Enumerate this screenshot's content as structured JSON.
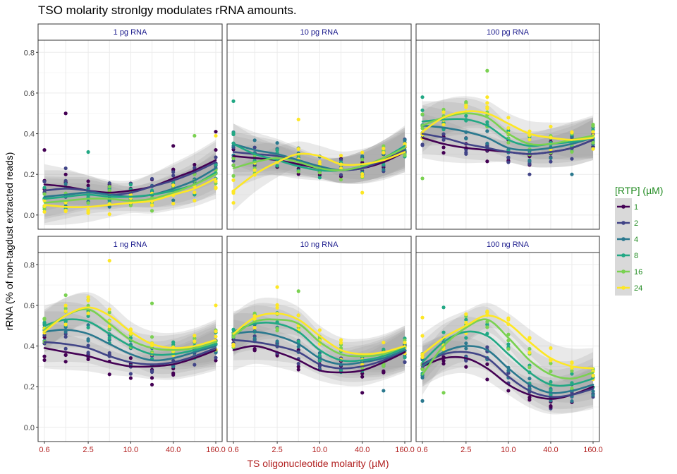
{
  "chart_data": {
    "type": "scatter",
    "title": "TSO molarity stronlgy modulates rRNA amounts.",
    "xlabel": "TS oligonucleotide molarity (µM)",
    "ylabel": "rRNA (% of non-tagdust extracted reads)",
    "x_scale": "log",
    "x_ticks": [
      0.6,
      2.5,
      10.0,
      40.0,
      160.0
    ],
    "x_tick_labels": [
      "0.6",
      "2.5",
      "10.0",
      "40.0",
      "160.0"
    ],
    "x_levels": [
      0.6,
      1.2,
      2.5,
      5,
      10,
      20,
      40,
      80,
      160
    ],
    "ylim": [
      -0.07,
      0.86
    ],
    "y_ticks": [
      0.0,
      0.2,
      0.4,
      0.6,
      0.8
    ],
    "y_tick_labels": [
      "0.0",
      "0.2",
      "0.4",
      "0.6",
      "0.8"
    ],
    "grid": true,
    "legend": {
      "title": "[RTP] (µM)",
      "position": "right",
      "entries": [
        "1",
        "2",
        "4",
        "8",
        "16",
        "24"
      ]
    },
    "colors": {
      "1": "#440154",
      "2": "#414487",
      "4": "#2a788e",
      "8": "#22a884",
      "16": "#7ad151",
      "24": "#fde725",
      "panel_border": "#333333",
      "strip_bg": "#ffffff",
      "ribbon": "#999999"
    },
    "panels": [
      {
        "label": "1 pg RNA",
        "series": [
          {
            "rtp": "1",
            "y": [
              0.15,
              0.14,
              0.12,
              0.11,
              0.12,
              0.14,
              0.18,
              0.22,
              0.27
            ]
          },
          {
            "rtp": "2",
            "y": [
              0.12,
              0.13,
              0.12,
              0.1,
              0.11,
              0.14,
              0.17,
              0.21,
              0.26
            ]
          },
          {
            "rtp": "4",
            "y": [
              0.09,
              0.1,
              0.11,
              0.1,
              0.09,
              0.1,
              0.13,
              0.17,
              0.23
            ]
          },
          {
            "rtp": "8",
            "y": [
              0.08,
              0.09,
              0.1,
              0.09,
              0.09,
              0.1,
              0.12,
              0.15,
              0.21
            ]
          },
          {
            "rtp": "16",
            "y": [
              0.06,
              0.07,
              0.08,
              0.08,
              0.07,
              0.08,
              0.11,
              0.15,
              0.2
            ]
          },
          {
            "rtp": "24",
            "y": [
              0.05,
              0.04,
              0.04,
              0.05,
              0.06,
              0.07,
              0.1,
              0.13,
              0.18
            ]
          }
        ],
        "points": [
          {
            "rtp": "1",
            "x": 0.6,
            "y": 0.32
          },
          {
            "rtp": "1",
            "x": 1.2,
            "y": 0.5
          },
          {
            "rtp": "2",
            "x": 1.2,
            "y": 0.23
          },
          {
            "rtp": "8",
            "x": 2.5,
            "y": 0.31
          },
          {
            "rtp": "1",
            "x": 40,
            "y": 0.34
          },
          {
            "rtp": "16",
            "x": 80,
            "y": 0.39
          },
          {
            "rtp": "1",
            "x": 160,
            "y": 0.41
          },
          {
            "rtp": "24",
            "x": 160,
            "y": 0.39
          }
        ]
      },
      {
        "label": "10 pg RNA",
        "series": [
          {
            "rtp": "1",
            "y": [
              0.29,
              0.28,
              0.27,
              0.25,
              0.23,
              0.22,
              0.23,
              0.26,
              0.31
            ]
          },
          {
            "rtp": "2",
            "y": [
              0.31,
              0.3,
              0.29,
              0.26,
              0.23,
              0.22,
              0.23,
              0.27,
              0.32
            ]
          },
          {
            "rtp": "4",
            "y": [
              0.35,
              0.32,
              0.3,
              0.27,
              0.24,
              0.22,
              0.24,
              0.28,
              0.33
            ]
          },
          {
            "rtp": "8",
            "y": [
              0.35,
              0.3,
              0.27,
              0.24,
              0.22,
              0.22,
              0.24,
              0.28,
              0.34
            ]
          },
          {
            "rtp": "16",
            "y": [
              0.23,
              0.26,
              0.28,
              0.26,
              0.23,
              0.22,
              0.24,
              0.28,
              0.33
            ]
          },
          {
            "rtp": "24",
            "y": [
              0.12,
              0.2,
              0.26,
              0.3,
              0.29,
              0.25,
              0.25,
              0.27,
              0.31
            ]
          }
        ],
        "points": [
          {
            "rtp": "8",
            "x": 0.6,
            "y": 0.56
          },
          {
            "rtp": "24",
            "x": 5,
            "y": 0.47
          },
          {
            "rtp": "24",
            "x": 0.6,
            "y": 0.06
          },
          {
            "rtp": "24",
            "x": 40,
            "y": 0.11
          }
        ]
      },
      {
        "label": "100 pg RNA",
        "series": [
          {
            "rtp": "1",
            "y": [
              0.38,
              0.35,
              0.33,
              0.32,
              0.31,
              0.3,
              0.31,
              0.33,
              0.37
            ]
          },
          {
            "rtp": "2",
            "y": [
              0.4,
              0.38,
              0.35,
              0.33,
              0.31,
              0.3,
              0.31,
              0.33,
              0.37
            ]
          },
          {
            "rtp": "4",
            "y": [
              0.44,
              0.43,
              0.41,
              0.38,
              0.33,
              0.32,
              0.33,
              0.35,
              0.38
            ]
          },
          {
            "rtp": "8",
            "y": [
              0.46,
              0.47,
              0.47,
              0.44,
              0.37,
              0.34,
              0.35,
              0.36,
              0.38
            ]
          },
          {
            "rtp": "16",
            "y": [
              0.44,
              0.48,
              0.5,
              0.48,
              0.4,
              0.35,
              0.35,
              0.37,
              0.39
            ]
          },
          {
            "rtp": "24",
            "y": [
              0.41,
              0.48,
              0.51,
              0.5,
              0.45,
              0.4,
              0.38,
              0.37,
              0.38
            ]
          }
        ],
        "points": [
          {
            "rtp": "16",
            "x": 5,
            "y": 0.71
          },
          {
            "rtp": "8",
            "x": 0.6,
            "y": 0.58
          },
          {
            "rtp": "24",
            "x": 5,
            "y": 0.58
          },
          {
            "rtp": "16",
            "x": 0.6,
            "y": 0.18
          },
          {
            "rtp": "4",
            "x": 80,
            "y": 0.2
          },
          {
            "rtp": "2",
            "x": 20,
            "y": 0.2
          }
        ]
      },
      {
        "label": "1 ng RNA",
        "series": [
          {
            "rtp": "1",
            "y": [
              0.39,
              0.37,
              0.35,
              0.32,
              0.3,
              0.3,
              0.31,
              0.34,
              0.38
            ]
          },
          {
            "rtp": "2",
            "y": [
              0.42,
              0.41,
              0.39,
              0.35,
              0.32,
              0.31,
              0.32,
              0.35,
              0.39
            ]
          },
          {
            "rtp": "4",
            "y": [
              0.47,
              0.48,
              0.46,
              0.41,
              0.36,
              0.33,
              0.34,
              0.37,
              0.4
            ]
          },
          {
            "rtp": "8",
            "y": [
              0.5,
              0.53,
              0.52,
              0.46,
              0.4,
              0.36,
              0.36,
              0.38,
              0.41
            ]
          },
          {
            "rtp": "16",
            "y": [
              0.48,
              0.55,
              0.58,
              0.51,
              0.43,
              0.39,
              0.38,
              0.39,
              0.42
            ]
          },
          {
            "rtp": "24",
            "y": [
              0.47,
              0.55,
              0.59,
              0.55,
              0.47,
              0.41,
              0.39,
              0.4,
              0.43
            ]
          }
        ],
        "points": [
          {
            "rtp": "24",
            "x": 5,
            "y": 0.82
          },
          {
            "rtp": "16",
            "x": 1.2,
            "y": 0.65
          },
          {
            "rtp": "16",
            "x": 20,
            "y": 0.61
          },
          {
            "rtp": "1",
            "x": 20,
            "y": 0.21
          },
          {
            "rtp": "24",
            "x": 160,
            "y": 0.6
          }
        ]
      },
      {
        "label": "10 ng RNA",
        "series": [
          {
            "rtp": "1",
            "y": [
              0.38,
              0.4,
              0.37,
              0.33,
              0.28,
              0.27,
              0.28,
              0.32,
              0.37
            ]
          },
          {
            "rtp": "2",
            "y": [
              0.43,
              0.42,
              0.4,
              0.37,
              0.31,
              0.29,
              0.3,
              0.33,
              0.38
            ]
          },
          {
            "rtp": "4",
            "y": [
              0.46,
              0.47,
              0.45,
              0.41,
              0.34,
              0.31,
              0.32,
              0.34,
              0.38
            ]
          },
          {
            "rtp": "8",
            "y": [
              0.47,
              0.51,
              0.51,
              0.47,
              0.38,
              0.33,
              0.33,
              0.35,
              0.39
            ]
          },
          {
            "rtp": "16",
            "y": [
              0.45,
              0.52,
              0.53,
              0.51,
              0.42,
              0.36,
              0.35,
              0.36,
              0.4
            ]
          },
          {
            "rtp": "24",
            "y": [
              0.46,
              0.54,
              0.56,
              0.53,
              0.45,
              0.38,
              0.36,
              0.37,
              0.4
            ]
          }
        ],
        "points": [
          {
            "rtp": "24",
            "x": 2.5,
            "y": 0.69
          },
          {
            "rtp": "16",
            "x": 5,
            "y": 0.67
          },
          {
            "rtp": "1",
            "x": 40,
            "y": 0.17
          },
          {
            "rtp": "4",
            "x": 80,
            "y": 0.18
          }
        ]
      },
      {
        "label": "100 ng RNA",
        "series": [
          {
            "rtp": "1",
            "y": [
              0.3,
              0.34,
              0.34,
              0.29,
              0.21,
              0.16,
              0.14,
              0.16,
              0.2
            ]
          },
          {
            "rtp": "2",
            "y": [
              0.31,
              0.36,
              0.37,
              0.34,
              0.25,
              0.18,
              0.15,
              0.16,
              0.19
            ]
          },
          {
            "rtp": "4",
            "y": [
              0.3,
              0.37,
              0.4,
              0.38,
              0.29,
              0.21,
              0.17,
              0.18,
              0.21
            ]
          },
          {
            "rtp": "8",
            "y": [
              0.32,
              0.42,
              0.47,
              0.45,
              0.36,
              0.27,
              0.21,
              0.21,
              0.24
            ]
          },
          {
            "rtp": "16",
            "y": [
              0.26,
              0.4,
              0.49,
              0.53,
              0.44,
              0.33,
              0.26,
              0.24,
              0.27
            ]
          },
          {
            "rtp": "24",
            "y": [
              0.36,
              0.44,
              0.5,
              0.55,
              0.51,
              0.42,
              0.34,
              0.3,
              0.29
            ]
          }
        ],
        "points": [
          {
            "rtp": "24",
            "x": 0.6,
            "y": 0.54
          },
          {
            "rtp": "8",
            "x": 1.2,
            "y": 0.59
          },
          {
            "rtp": "24",
            "x": 0.6,
            "y": 0.45
          },
          {
            "rtp": "16",
            "x": 1.2,
            "y": 0.17
          },
          {
            "rtp": "1",
            "x": 40,
            "y": 0.1
          },
          {
            "rtp": "4",
            "x": 0.6,
            "y": 0.13
          }
        ]
      }
    ]
  }
}
